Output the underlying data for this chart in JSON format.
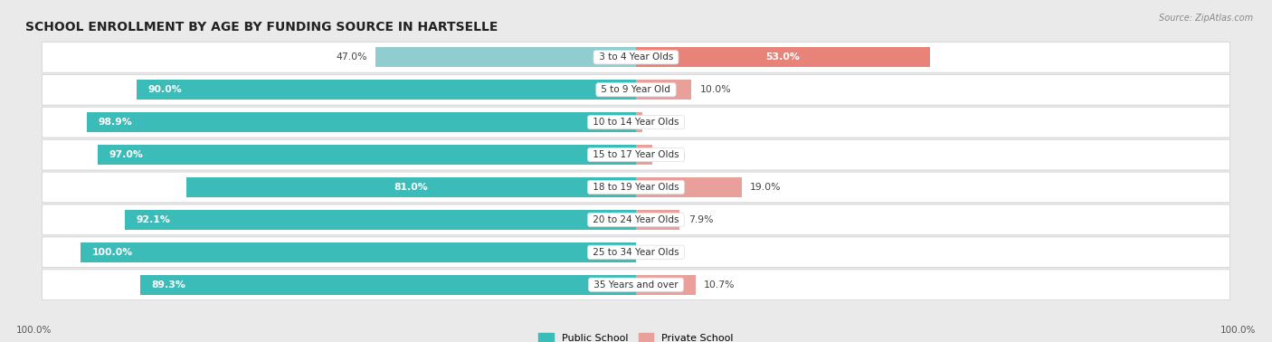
{
  "title": "SCHOOL ENROLLMENT BY AGE BY FUNDING SOURCE IN HARTSELLE",
  "source": "Source: ZipAtlas.com",
  "categories": [
    "3 to 4 Year Olds",
    "5 to 9 Year Old",
    "10 to 14 Year Olds",
    "15 to 17 Year Olds",
    "18 to 19 Year Olds",
    "20 to 24 Year Olds",
    "25 to 34 Year Olds",
    "35 Years and over"
  ],
  "public_values": [
    47.0,
    90.0,
    98.9,
    97.0,
    81.0,
    92.1,
    100.0,
    89.3
  ],
  "private_values": [
    53.0,
    10.0,
    1.1,
    3.0,
    19.0,
    7.9,
    0.0,
    10.7
  ],
  "public_color": "#3cbcb8",
  "public_color_light": "#91cdd0",
  "private_color": "#e8837a",
  "private_color_light": "#eaa09a",
  "background_color": "#eaeaea",
  "row_color": "#f8f8f8",
  "title_fontsize": 10,
  "label_fontsize": 7.8,
  "cat_fontsize": 7.5,
  "bar_height": 0.62,
  "x_left_label": "100.0%",
  "x_right_label": "100.0%"
}
